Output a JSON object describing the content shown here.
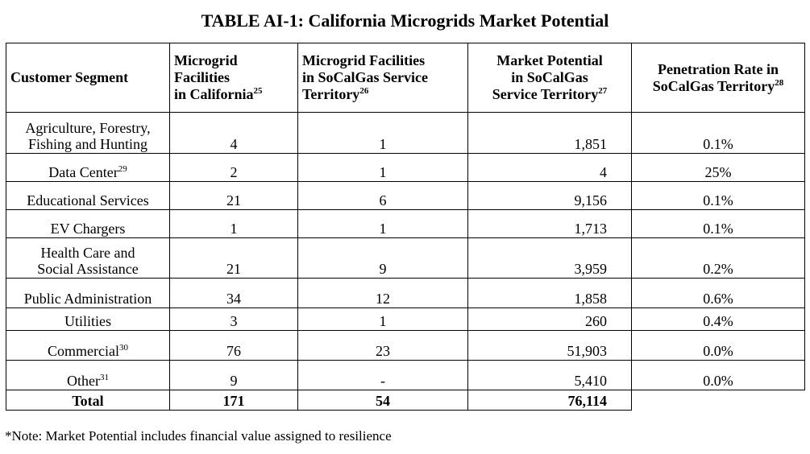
{
  "title": "TABLE AI-1: California Microgrids Market Potential",
  "columns": {
    "segment": "Customer Segment",
    "ca_a": "Microgrid",
    "ca_b": "Facilities",
    "ca_c": "in California",
    "ca_sup": "25",
    "scg_a": "Microgrid Facilities",
    "scg_b": "in SoCalGas Service",
    "scg_c": "Territory",
    "scg_sup": "26",
    "mp_a": "Market Potential",
    "mp_b": "in SoCalGas",
    "mp_c": "Service Territory",
    "mp_sup": "27",
    "pr_a": "Penetration Rate in",
    "pr_b": "SoCalGas Territory",
    "pr_sup": "28"
  },
  "rows": [
    {
      "seg1": "Agriculture, Forestry,",
      "seg2": "Fishing and Hunting",
      "ca": "4",
      "scg": "1",
      "mp": "1,851",
      "pr": "0.1%"
    },
    {
      "seg1": "Data Center",
      "sup": "29",
      "ca": "2",
      "scg": "1",
      "mp": "4",
      "pr": "25%"
    },
    {
      "seg1": "Educational Services",
      "ca": "21",
      "scg": "6",
      "mp": "9,156",
      "pr": "0.1%"
    },
    {
      "seg1": "EV Chargers",
      "ca": "1",
      "scg": "1",
      "mp": "1,713",
      "pr": "0.1%"
    },
    {
      "seg1": "Health Care and",
      "seg2": "Social Assistance",
      "ca": "21",
      "scg": "9",
      "mp": "3,959",
      "pr": "0.2%"
    },
    {
      "seg1": "Public Administration",
      "ca": "34",
      "scg": "12",
      "mp": "1,858",
      "pr": "0.6%"
    },
    {
      "seg1": "Utilities",
      "ca": "3",
      "scg": "1",
      "mp": "260",
      "pr": "0.4%"
    },
    {
      "seg1": "Commercial",
      "sup": "30",
      "ca": "76",
      "scg": "23",
      "mp": "51,903",
      "pr": "0.0%"
    },
    {
      "seg1": "Other",
      "sup": "31",
      "ca": "9",
      "scg": "-",
      "mp": "5,410",
      "pr": "0.0%"
    }
  ],
  "total": {
    "label": "Total",
    "ca": "171",
    "scg": "54",
    "mp": "76,114"
  },
  "note": "*Note: Market Potential includes financial value assigned to resilience"
}
